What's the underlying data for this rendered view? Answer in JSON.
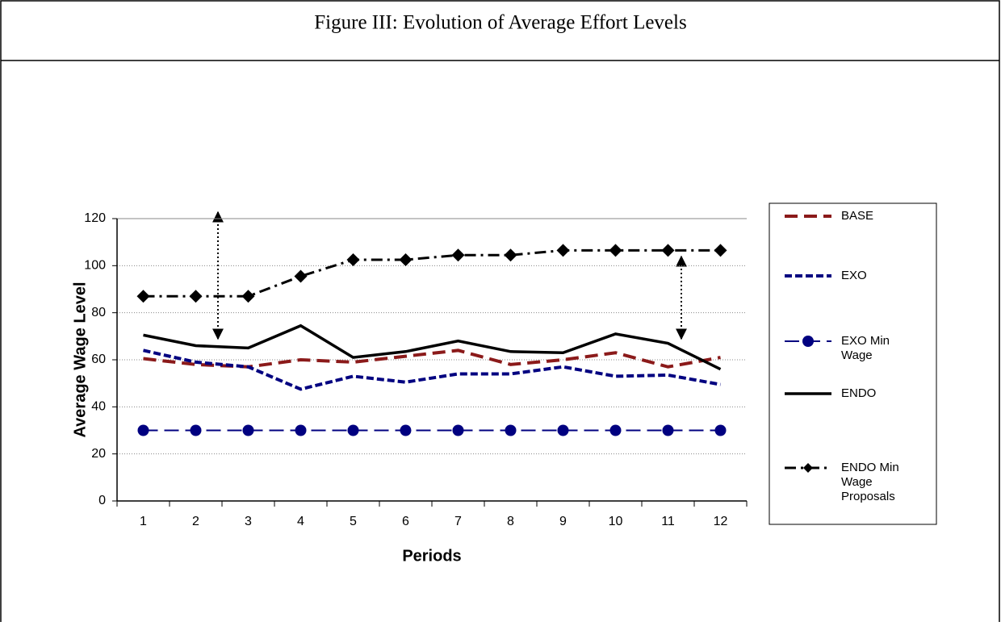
{
  "chart_data": {
    "type": "line",
    "title": "Figure III: Evolution of Average Effort Levels",
    "x_label": "Periods",
    "y_label": "Average Wage Level",
    "categories": [
      "1",
      "2",
      "3",
      "4",
      "5",
      "6",
      "7",
      "8",
      "9",
      "10",
      "11",
      "12"
    ],
    "ylim": [
      0,
      120
    ],
    "yticks": [
      0,
      20,
      40,
      60,
      80,
      100,
      120
    ],
    "grid": true,
    "legend": "right",
    "series": [
      {
        "name": "BASE",
        "color": "#8b1a1a",
        "values": [
          60.5,
          58,
          57,
          60,
          59,
          61.5,
          64,
          58,
          60,
          63,
          57,
          61
        ]
      },
      {
        "name": "EXO",
        "color": "#000080",
        "values": [
          64,
          59,
          57,
          47.5,
          53,
          50.5,
          54,
          54,
          57,
          53,
          53.5,
          49.5
        ]
      },
      {
        "name": "EXO Min Wage",
        "color": "#000080",
        "values": [
          30,
          30,
          30,
          30,
          30,
          30,
          30,
          30,
          30,
          30,
          30,
          30
        ]
      },
      {
        "name": "ENDO",
        "color": "#000000",
        "values": [
          70.5,
          66,
          65,
          74.5,
          61,
          63.5,
          68,
          63.5,
          63,
          71,
          67,
          56
        ]
      },
      {
        "name": "ENDO Min Wage Proposals",
        "color": "#000000",
        "values": [
          87,
          87,
          87,
          95.5,
          102.5,
          102.5,
          104.5,
          104.5,
          106.5,
          106.5,
          106.5,
          106.5
        ]
      }
    ]
  }
}
